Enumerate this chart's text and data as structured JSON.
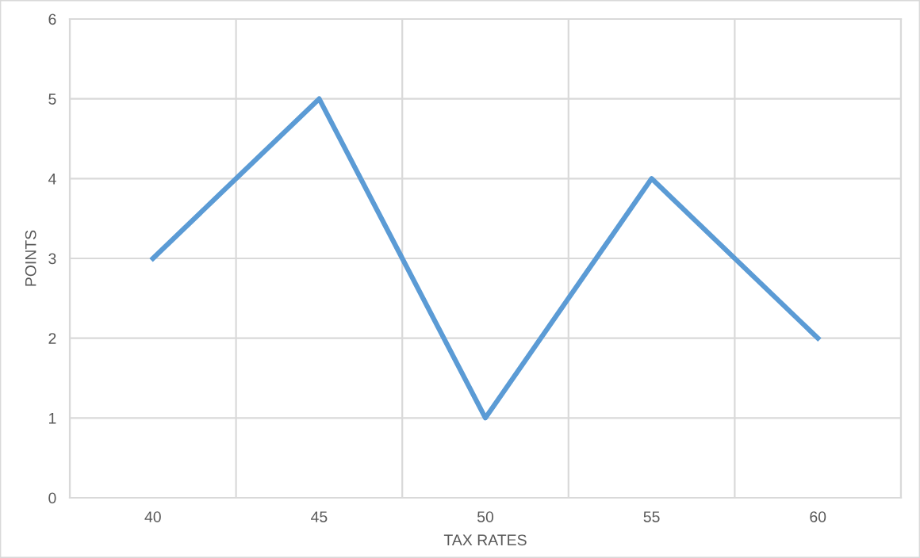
{
  "chart_data": {
    "type": "line",
    "xlabel": "TAX RATES",
    "ylabel": "POINTS",
    "categories": [
      "40",
      "45",
      "50",
      "55",
      "60"
    ],
    "series": [
      {
        "color": "#5b9bd5",
        "values": [
          3,
          5,
          1,
          4,
          2
        ]
      }
    ],
    "ylim": [
      0,
      6
    ],
    "yticks": [
      0,
      1,
      2,
      3,
      4,
      5,
      6
    ],
    "grid": true,
    "marker": "none",
    "line_style": "solid"
  }
}
